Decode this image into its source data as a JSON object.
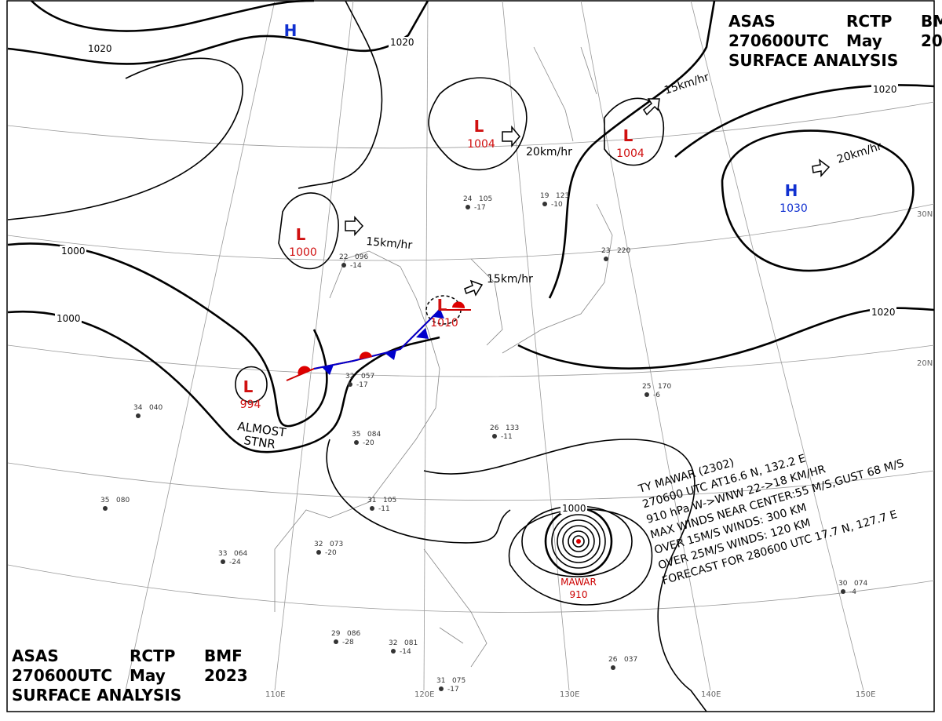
{
  "header": {
    "agency": "ASAS",
    "center": "RCTP",
    "office": "BMF",
    "time": "270600UTC",
    "month": "May",
    "year": "2023",
    "title": "SURFACE ANALYSIS"
  },
  "systems": [
    {
      "symbol": "L",
      "pressure": "1004"
    },
    {
      "symbol": "L",
      "pressure": "1004"
    },
    {
      "symbol": "H",
      "pressure": "1030"
    },
    {
      "symbol": "L",
      "pressure": "1000"
    },
    {
      "symbol": "L",
      "pressure": "1010"
    },
    {
      "symbol": "L",
      "pressure": "994"
    },
    {
      "symbol": "H"
    }
  ],
  "typhoon_marker": {
    "name": "MAWAR",
    "pressure": "910"
  },
  "stationary_note": [
    "ALMOST",
    "STNR"
  ],
  "motions": [
    "20km/hr",
    "15km/hr",
    "20km/hr",
    "15km/hr",
    "15km/hr"
  ],
  "isobar_labels": [
    "1020",
    "1020",
    "1020",
    "1000",
    "1000",
    "1020",
    "1000"
  ],
  "grid_labels": [
    "110E",
    "120E",
    "130E",
    "140E",
    "150E",
    "20N",
    "30N"
  ],
  "typhoon_info": [
    "TY MAWAR (2302)",
    "270600 UTC AT16.6 N, 132.2 E",
    "910 hPa W->WNW 22->18 KM/HR",
    "MAX WINDS NEAR CENTER:55 M/S,GUST 68 M/S",
    "OVER 15M/S WINDS: 300 KM",
    "OVER 25M/S WINDS: 120 KM",
    "FORECAST FOR 280600 UTC 17.7 N, 127.7 E"
  ],
  "stations": [
    {
      "temp": "19",
      "pressure": "123",
      "tendency": "-10"
    },
    {
      "temp": "24",
      "pressure": "105",
      "tendency": "-17"
    },
    {
      "temp": "35",
      "pressure": "084",
      "tendency": "-20"
    },
    {
      "temp": "31",
      "pressure": "105",
      "tendency": "-11"
    },
    {
      "temp": "32",
      "pressure": "057",
      "tendency": "-17"
    },
    {
      "temp": "26",
      "pressure": "133",
      "tendency": "-11"
    },
    {
      "temp": "25",
      "pressure": "170",
      "tendency": "-6"
    },
    {
      "temp": "29",
      "pressure": "086",
      "tendency": "-28"
    },
    {
      "temp": "32",
      "pressure": "081",
      "tendency": "-14"
    },
    {
      "temp": "31",
      "pressure": "075",
      "tendency": "-17"
    },
    {
      "temp": "34",
      "pressure": "040"
    },
    {
      "temp": "35",
      "pressure": "080"
    },
    {
      "temp": "33",
      "pressure": "064",
      "tendency": "-24"
    },
    {
      "temp": "32",
      "pressure": "073",
      "tendency": "-20"
    },
    {
      "temp": "22",
      "pressure": "096",
      "tendency": "-14"
    },
    {
      "temp": "23",
      "pressure": "220"
    },
    {
      "temp": "26",
      "pressure": "037"
    },
    {
      "temp": "30",
      "pressure": "074",
      "tendency": "-4"
    }
  ]
}
